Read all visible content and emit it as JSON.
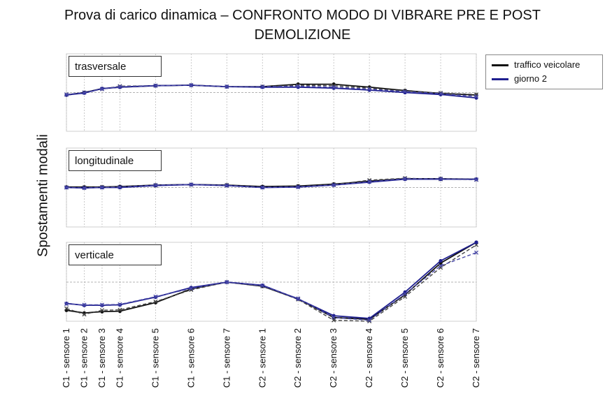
{
  "chart_data": {
    "type": "line",
    "title": "Prova di carico dinamica – CONFRONTO MODO DI VIBRARE PRE E POST DEMOLIZIONE",
    "ylabel": "Spostamenti modali",
    "xlabel": "",
    "legend_position": "top-right",
    "categories": [
      "C1 - sensore 1",
      "C1 - sensore 2",
      "C1 - sensore 3",
      "C1 - sensore 4",
      "C1 - sensore 5",
      "C1 - sensore 6",
      "C1 - sensore 7",
      "C2 - sensore 1",
      "C2 - sensore 2",
      "C2 - sensore 3",
      "C2 - sensore 4",
      "C2 - sensore 5",
      "C2 - sensore 6",
      "C2 - sensore 7"
    ],
    "x_positions": [
      1,
      2,
      3,
      4,
      6,
      8,
      10,
      12,
      14,
      16,
      18,
      20,
      22,
      24
    ],
    "legend": [
      {
        "name": "traffico veicolare",
        "color": "#111111"
      },
      {
        "name": "giorno 2",
        "color": "#1f1f8f"
      }
    ],
    "panels": [
      {
        "label": "trasversale",
        "ylim": [
          -1,
          1
        ],
        "reference": 0,
        "series": [
          {
            "name": "traffico veicolare",
            "color": "#111111",
            "style": "solid",
            "marker": "circle",
            "values": [
              -0.05,
              0.0,
              0.08,
              0.11,
              0.14,
              0.15,
              0.12,
              0.12,
              0.17,
              0.17,
              0.11,
              0.04,
              -0.02,
              -0.05
            ]
          },
          {
            "name": "traffico veicolare",
            "color": "#444444",
            "style": "dashed",
            "marker": "x",
            "values": [
              -0.04,
              0.0,
              0.07,
              0.13,
              0.14,
              0.15,
              0.12,
              0.12,
              0.15,
              0.14,
              0.09,
              0.03,
              -0.01,
              -0.04
            ]
          },
          {
            "name": "giorno 2",
            "color": "#1f1f8f",
            "style": "solid",
            "marker": "circle",
            "values": [
              -0.05,
              -0.01,
              0.08,
              0.11,
              0.14,
              0.15,
              0.12,
              0.11,
              0.11,
              0.09,
              0.05,
              0.0,
              -0.04,
              -0.11
            ]
          },
          {
            "name": "giorno 2",
            "color": "#4a4aa8",
            "style": "dashed",
            "marker": "x",
            "values": [
              -0.04,
              0.0,
              0.07,
              0.12,
              0.14,
              0.15,
              0.12,
              0.12,
              0.13,
              0.11,
              0.07,
              0.02,
              -0.02,
              -0.08
            ]
          }
        ]
      },
      {
        "label": "longitudinale",
        "ylim": [
          -1,
          1
        ],
        "reference": 0,
        "series": [
          {
            "name": "traffico veicolare",
            "color": "#111111",
            "style": "solid",
            "marker": "circle",
            "values": [
              0.01,
              0.01,
              0.01,
              0.02,
              0.05,
              0.06,
              0.05,
              0.02,
              0.03,
              0.07,
              0.13,
              0.18,
              0.18,
              0.17
            ]
          },
          {
            "name": "traffico veicolare",
            "color": "#444444",
            "style": "dashed",
            "marker": "x",
            "values": [
              0.0,
              0.0,
              0.01,
              0.01,
              0.04,
              0.06,
              0.05,
              0.01,
              0.02,
              0.06,
              0.15,
              0.19,
              0.17,
              0.16
            ]
          },
          {
            "name": "giorno 2",
            "color": "#1f1f8f",
            "style": "solid",
            "marker": "circle",
            "values": [
              0.0,
              -0.01,
              0.0,
              0.0,
              0.04,
              0.06,
              0.04,
              0.0,
              0.01,
              0.05,
              0.11,
              0.17,
              0.17,
              0.17
            ]
          },
          {
            "name": "giorno 2",
            "color": "#4a4aa8",
            "style": "dashed",
            "marker": "x",
            "values": [
              0.0,
              -0.01,
              0.0,
              0.01,
              0.05,
              0.06,
              0.04,
              0.0,
              0.01,
              0.05,
              0.12,
              0.18,
              0.18,
              0.16
            ]
          }
        ]
      },
      {
        "label": "verticale",
        "ylim": [
          -1,
          1
        ],
        "reference": 0,
        "series": [
          {
            "name": "traffico veicolare",
            "color": "#111111",
            "style": "solid",
            "marker": "circle",
            "values": [
              -0.62,
              -0.68,
              -0.65,
              -0.64,
              -0.45,
              -0.15,
              0.0,
              -0.09,
              -0.37,
              -0.78,
              -0.82,
              -0.28,
              0.42,
              1.0
            ]
          },
          {
            "name": "traffico veicolare",
            "color": "#444444",
            "style": "dashed",
            "marker": "x",
            "values": [
              -0.58,
              -0.71,
              -0.62,
              -0.61,
              -0.43,
              -0.17,
              0.0,
              -0.09,
              -0.38,
              -0.84,
              -0.88,
              -0.32,
              0.32,
              0.82
            ]
          },
          {
            "name": "giorno 2",
            "color": "#1f1f8f",
            "style": "solid",
            "marker": "circle",
            "values": [
              -0.47,
              -0.51,
              -0.51,
              -0.5,
              -0.33,
              -0.12,
              0.0,
              -0.07,
              -0.37,
              -0.74,
              -0.8,
              -0.22,
              0.47,
              1.0
            ]
          },
          {
            "name": "giorno 2",
            "color": "#4a4aa8",
            "style": "dashed",
            "marker": "x",
            "values": [
              -0.48,
              -0.5,
              -0.5,
              -0.49,
              -0.32,
              -0.14,
              0.0,
              -0.08,
              -0.36,
              -0.78,
              -0.84,
              -0.26,
              0.36,
              0.65
            ]
          }
        ]
      }
    ]
  }
}
